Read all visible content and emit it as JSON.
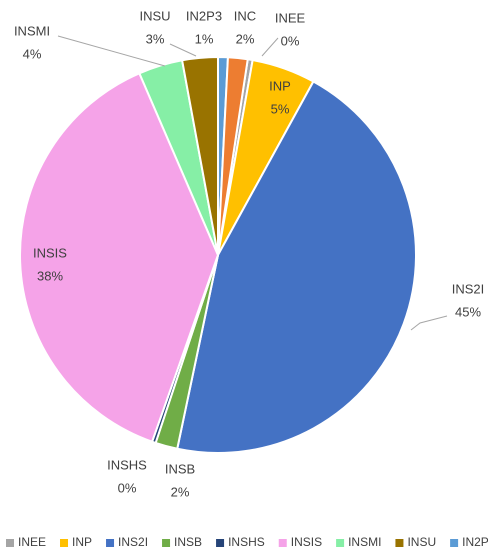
{
  "chart_data": {
    "type": "pie",
    "categories": [
      "INEE",
      "INP",
      "INS2I",
      "INSB",
      "INSHS",
      "INSIS",
      "INSMI",
      "INSU",
      "IN2P3",
      "INC"
    ],
    "values": [
      0.4,
      5.2,
      45.3,
      1.8,
      0.3,
      38.1,
      3.6,
      2.9,
      0.8,
      1.6
    ],
    "value_labels": [
      "0%",
      "5%",
      "45%",
      "2%",
      "0%",
      "38%",
      "4%",
      "3%",
      "1%",
      "2%"
    ],
    "colors": [
      "#a5a5a5",
      "#ffc000",
      "#4472c4",
      "#70ad47",
      "#264478",
      "#f5a3e8",
      "#86efa6",
      "#997300",
      "#5b9bd5",
      "#ed7d31"
    ],
    "legend": "bottom"
  }
}
